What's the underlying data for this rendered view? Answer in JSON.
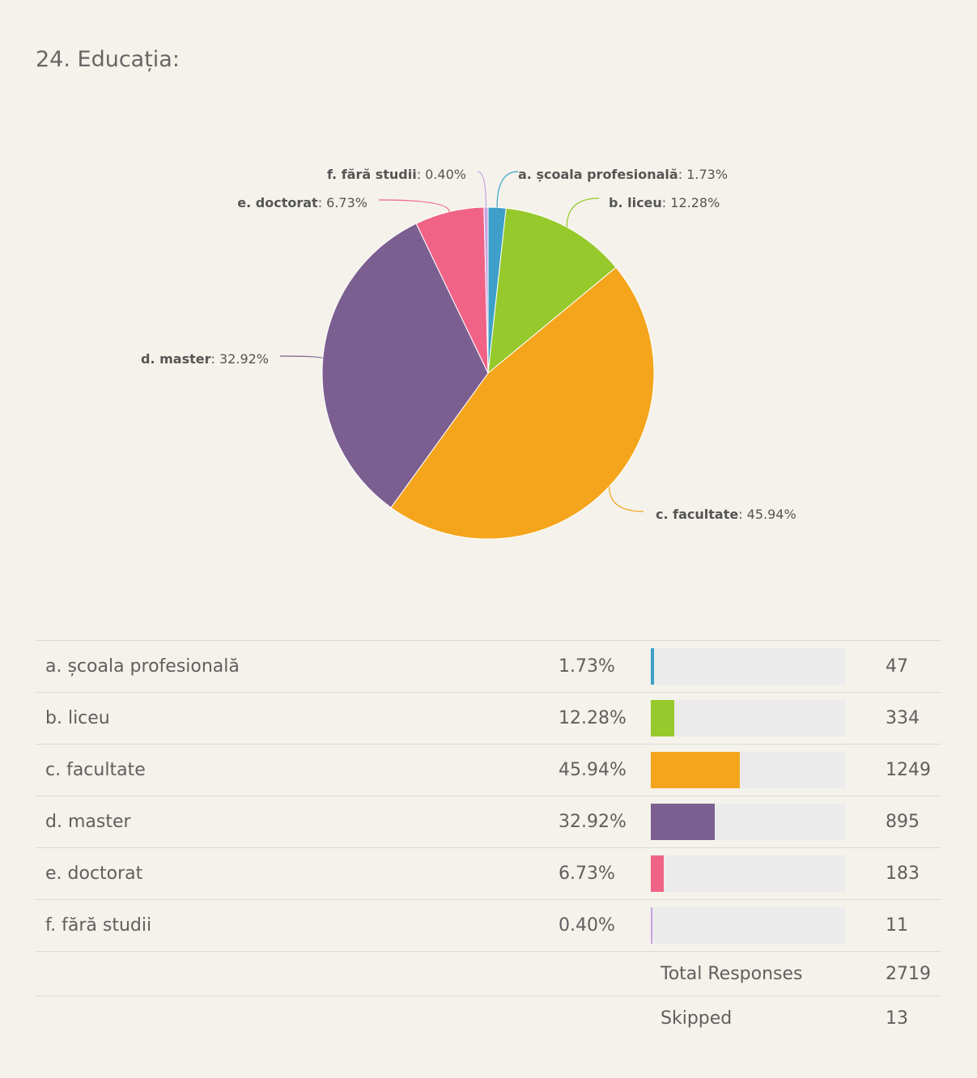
{
  "question": {
    "title": "24. Educația:"
  },
  "chart_data": {
    "type": "pie",
    "categories": [
      "a. școala profesională",
      "b. liceu",
      "c. facultate",
      "d. master",
      "e. doctorat",
      "f. fără studii"
    ],
    "values": [
      1.73,
      12.28,
      45.94,
      32.92,
      6.73,
      0.4
    ],
    "labels": [
      "1.73%",
      "12.28%",
      "45.94%",
      "32.92%",
      "6.73%",
      "0.40%"
    ],
    "colors": [
      "#3ea0c8",
      "#96c92b",
      "#f4a51b",
      "#7c5f91",
      "#f06387",
      "#c8a2e0"
    ]
  },
  "table": {
    "rows": [
      {
        "label": "a. școala profesională",
        "percent": "1.73%",
        "fraction": 0.0173,
        "count": "47",
        "color": "#3ea0c8"
      },
      {
        "label": "b. liceu",
        "percent": "12.28%",
        "fraction": 0.1228,
        "count": "334",
        "color": "#96c92b"
      },
      {
        "label": "c. facultate",
        "percent": "45.94%",
        "fraction": 0.4594,
        "count": "1249",
        "color": "#f4a51b"
      },
      {
        "label": "d. master",
        "percent": "32.92%",
        "fraction": 0.3292,
        "count": "895",
        "color": "#7c5f91"
      },
      {
        "label": "e. doctorat",
        "percent": "6.73%",
        "fraction": 0.0673,
        "count": "183",
        "color": "#f06387"
      },
      {
        "label": "f. fără studii",
        "percent": "0.40%",
        "fraction": 0.004,
        "count": "11",
        "color": "#c8a2e0"
      }
    ],
    "total_label": "Total Responses",
    "total_value": "2719",
    "skipped_label": "Skipped",
    "skipped_value": "13"
  }
}
